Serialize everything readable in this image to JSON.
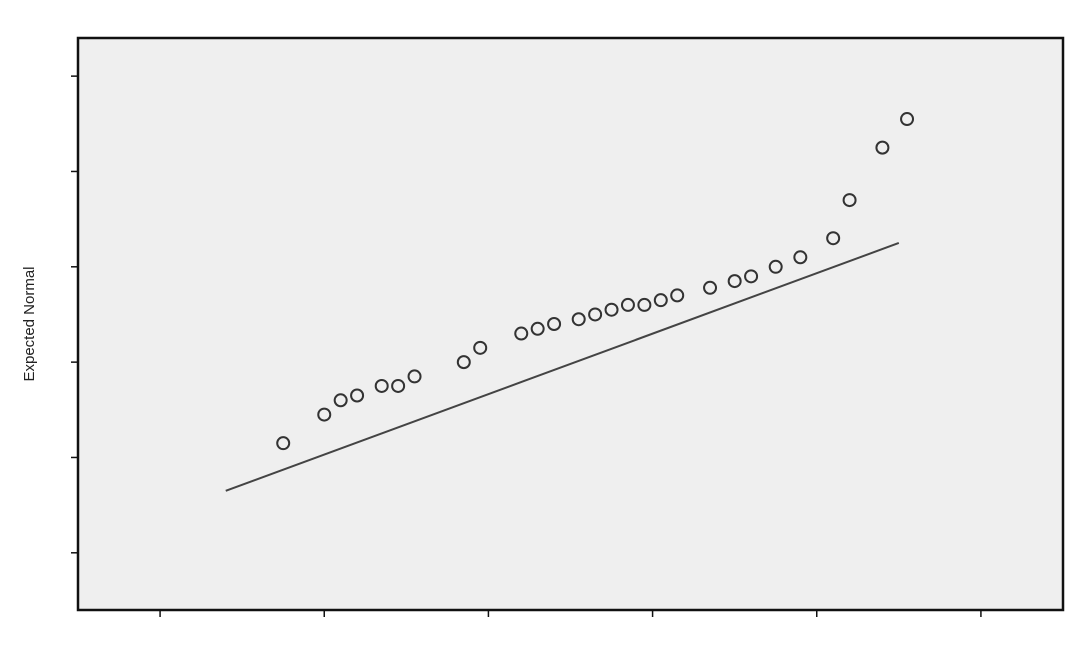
{
  "chart_data": {
    "type": "scatter",
    "title": "",
    "xlabel": "",
    "ylabel": "Expected Normal",
    "xlim": [
      -0.5,
      5.5
    ],
    "ylim": [
      -3.1,
      2.9
    ],
    "xticks": [
      0,
      1,
      2,
      3,
      4,
      5
    ],
    "yticks": [
      -2.5,
      -1.5,
      -0.5,
      0.5,
      1.5,
      2.5
    ],
    "tick_labels_x": [],
    "tick_labels_y": [],
    "grid": false,
    "reference_line": {
      "x": [
        0.4,
        4.5
      ],
      "y": [
        -1.85,
        0.75
      ]
    },
    "points": [
      {
        "x": 0.75,
        "y": -1.35
      },
      {
        "x": 1.0,
        "y": -1.05
      },
      {
        "x": 1.1,
        "y": -0.9
      },
      {
        "x": 1.2,
        "y": -0.85
      },
      {
        "x": 1.35,
        "y": -0.75
      },
      {
        "x": 1.45,
        "y": -0.75
      },
      {
        "x": 1.55,
        "y": -0.65
      },
      {
        "x": 1.85,
        "y": -0.5
      },
      {
        "x": 1.95,
        "y": -0.35
      },
      {
        "x": 2.2,
        "y": -0.2
      },
      {
        "x": 2.3,
        "y": -0.15
      },
      {
        "x": 2.4,
        "y": -0.1
      },
      {
        "x": 2.55,
        "y": -0.05
      },
      {
        "x": 2.65,
        "y": 0.0
      },
      {
        "x": 2.75,
        "y": 0.05
      },
      {
        "x": 2.85,
        "y": 0.1
      },
      {
        "x": 2.95,
        "y": 0.1
      },
      {
        "x": 3.05,
        "y": 0.15
      },
      {
        "x": 3.15,
        "y": 0.2
      },
      {
        "x": 3.35,
        "y": 0.28
      },
      {
        "x": 3.5,
        "y": 0.35
      },
      {
        "x": 3.6,
        "y": 0.4
      },
      {
        "x": 3.75,
        "y": 0.5
      },
      {
        "x": 3.9,
        "y": 0.6
      },
      {
        "x": 4.1,
        "y": 0.8
      },
      {
        "x": 4.2,
        "y": 1.2
      },
      {
        "x": 4.4,
        "y": 1.75
      },
      {
        "x": 4.55,
        "y": 2.05
      }
    ]
  }
}
